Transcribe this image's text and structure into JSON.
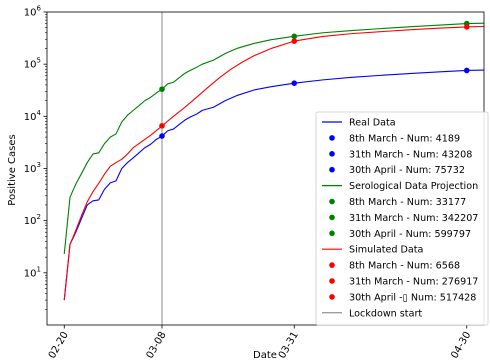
{
  "chart_data": {
    "type": "line",
    "xlabel": "Date",
    "ylabel": "Positive Cases",
    "yscale": "log",
    "ylim": [
      1,
      1000000
    ],
    "xlim": [
      "2020-02-17",
      "2020-05-03"
    ],
    "x_ticks": [
      {
        "date": "2020-02-20",
        "label": "02-20"
      },
      {
        "date": "2020-03-08",
        "label": "03-08"
      },
      {
        "date": "2020-03-31",
        "label": "03-31"
      },
      {
        "date": "2020-04-30",
        "label": "04-30"
      }
    ],
    "y_ticks": [
      {
        "value": 10,
        "base": "10",
        "exp": "1"
      },
      {
        "value": 100,
        "base": "10",
        "exp": "2"
      },
      {
        "value": 1000,
        "base": "10",
        "exp": "3"
      },
      {
        "value": 10000,
        "base": "10",
        "exp": "4"
      },
      {
        "value": 100000,
        "base": "10",
        "exp": "5"
      },
      {
        "value": 1000000,
        "base": "10",
        "exp": "6"
      }
    ],
    "vline": {
      "date": "2020-03-08",
      "color": "#7f7f7f",
      "name": "Lockdown start"
    },
    "legend_position": "lower right",
    "series": [
      {
        "name": "Real Data",
        "color": "#0000ff",
        "points": [
          [
            "2020-02-20",
            3
          ],
          [
            "2020-02-21",
            35
          ],
          [
            "2020-02-22",
            60
          ],
          [
            "2020-02-23",
            110
          ],
          [
            "2020-02-24",
            200
          ],
          [
            "2020-02-25",
            240
          ],
          [
            "2020-02-26",
            250
          ],
          [
            "2020-02-27",
            400
          ],
          [
            "2020-02-28",
            530
          ],
          [
            "2020-02-29",
            580
          ],
          [
            "2020-03-01",
            1000
          ],
          [
            "2020-03-02",
            1300
          ],
          [
            "2020-03-03",
            1600
          ],
          [
            "2020-03-04",
            2000
          ],
          [
            "2020-03-05",
            2500
          ],
          [
            "2020-03-06",
            2900
          ],
          [
            "2020-03-07",
            3600
          ],
          [
            "2020-03-08",
            4189
          ],
          [
            "2020-03-09",
            5300
          ],
          [
            "2020-03-10",
            5700
          ],
          [
            "2020-03-11",
            7000
          ],
          [
            "2020-03-12",
            8500
          ],
          [
            "2020-03-13",
            9800
          ],
          [
            "2020-03-14",
            11000
          ],
          [
            "2020-03-15",
            13000
          ],
          [
            "2020-03-17",
            15000
          ],
          [
            "2020-03-19",
            20000
          ],
          [
            "2020-03-21",
            25000
          ],
          [
            "2020-03-24",
            32000
          ],
          [
            "2020-03-27",
            37000
          ],
          [
            "2020-03-31",
            43208
          ],
          [
            "2020-04-05",
            50000
          ],
          [
            "2020-04-10",
            56000
          ],
          [
            "2020-04-15",
            61000
          ],
          [
            "2020-04-20",
            66000
          ],
          [
            "2020-04-25",
            71000
          ],
          [
            "2020-04-30",
            75732
          ],
          [
            "2020-05-03",
            77000
          ]
        ],
        "markers": [
          {
            "date": "2020-03-08",
            "value": 4189,
            "label": "8th  March  -  Num: 4189"
          },
          {
            "date": "2020-03-31",
            "value": 43208,
            "label": "31th March  -  Num: 43208"
          },
          {
            "date": "2020-04-30",
            "value": 75732,
            "label": "30th April   -  Num: 75732"
          }
        ]
      },
      {
        "name": "Serological Data Projection",
        "color": "#008000",
        "points": [
          [
            "2020-02-20",
            23
          ],
          [
            "2020-02-21",
            280
          ],
          [
            "2020-02-22",
            500
          ],
          [
            "2020-02-23",
            800
          ],
          [
            "2020-02-24",
            1300
          ],
          [
            "2020-02-25",
            1900
          ],
          [
            "2020-02-26",
            2000
          ],
          [
            "2020-02-27",
            3000
          ],
          [
            "2020-02-28",
            4000
          ],
          [
            "2020-02-29",
            4600
          ],
          [
            "2020-03-01",
            7800
          ],
          [
            "2020-03-02",
            10500
          ],
          [
            "2020-03-03",
            13000
          ],
          [
            "2020-03-04",
            16000
          ],
          [
            "2020-03-05",
            20000
          ],
          [
            "2020-03-06",
            23000
          ],
          [
            "2020-03-07",
            28000
          ],
          [
            "2020-03-08",
            33177
          ],
          [
            "2020-03-09",
            42000
          ],
          [
            "2020-03-10",
            45000
          ],
          [
            "2020-03-11",
            55000
          ],
          [
            "2020-03-12",
            67000
          ],
          [
            "2020-03-13",
            77000
          ],
          [
            "2020-03-14",
            87000
          ],
          [
            "2020-03-15",
            100000
          ],
          [
            "2020-03-17",
            120000
          ],
          [
            "2020-03-19",
            160000
          ],
          [
            "2020-03-21",
            200000
          ],
          [
            "2020-03-24",
            250000
          ],
          [
            "2020-03-27",
            295000
          ],
          [
            "2020-03-31",
            342207
          ],
          [
            "2020-04-05",
            400000
          ],
          [
            "2020-04-10",
            440000
          ],
          [
            "2020-04-15",
            480000
          ],
          [
            "2020-04-20",
            520000
          ],
          [
            "2020-04-25",
            560000
          ],
          [
            "2020-04-30",
            599797
          ],
          [
            "2020-05-03",
            610000
          ]
        ],
        "markers": [
          {
            "date": "2020-03-08",
            "value": 33177,
            "label": "8th  March  -  Num: 33177"
          },
          {
            "date": "2020-03-31",
            "value": 342207,
            "label": "31th March  -  Num: 342207"
          },
          {
            "date": "2020-04-30",
            "value": 599797,
            "label": "30th April   -  Num: 599797"
          }
        ]
      },
      {
        "name": "Simulated Data",
        "color": "#ff0000",
        "points": [
          [
            "2020-02-20",
            3
          ],
          [
            "2020-02-21",
            35
          ],
          [
            "2020-02-22",
            65
          ],
          [
            "2020-02-23",
            125
          ],
          [
            "2020-02-24",
            230
          ],
          [
            "2020-02-25",
            360
          ],
          [
            "2020-02-26",
            520
          ],
          [
            "2020-02-27",
            780
          ],
          [
            "2020-02-28",
            1100
          ],
          [
            "2020-02-29",
            1300
          ],
          [
            "2020-03-01",
            1500
          ],
          [
            "2020-03-02",
            1900
          ],
          [
            "2020-03-03",
            2500
          ],
          [
            "2020-03-04",
            3000
          ],
          [
            "2020-03-05",
            3600
          ],
          [
            "2020-03-06",
            4300
          ],
          [
            "2020-03-07",
            5300
          ],
          [
            "2020-03-08",
            6568
          ],
          [
            "2020-03-10",
            10000
          ],
          [
            "2020-03-12",
            15000
          ],
          [
            "2020-03-14",
            23000
          ],
          [
            "2020-03-16",
            36000
          ],
          [
            "2020-03-18",
            55000
          ],
          [
            "2020-03-20",
            80000
          ],
          [
            "2020-03-22",
            110000
          ],
          [
            "2020-03-24",
            145000
          ],
          [
            "2020-03-27",
            200000
          ],
          [
            "2020-03-31",
            276917
          ],
          [
            "2020-04-05",
            340000
          ],
          [
            "2020-04-10",
            385000
          ],
          [
            "2020-04-15",
            420000
          ],
          [
            "2020-04-20",
            455000
          ],
          [
            "2020-04-25",
            490000
          ],
          [
            "2020-04-30",
            517428
          ],
          [
            "2020-05-03",
            530000
          ]
        ],
        "markers": [
          {
            "date": "2020-03-08",
            "value": 6568,
            "label": "8th  March  -  Num: 6568"
          },
          {
            "date": "2020-03-31",
            "value": 276917,
            "label": "31th March  -  Num: 276917"
          },
          {
            "date": "2020-04-30",
            "value": 517428,
            "label": "30th April -▯ Num: 517428"
          }
        ]
      }
    ]
  }
}
